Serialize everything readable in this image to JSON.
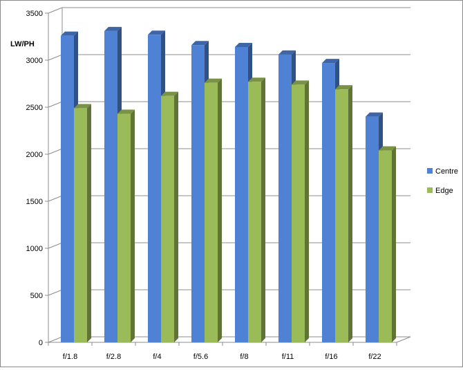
{
  "chart_data": {
    "type": "bar",
    "ylabel": "LW/PH",
    "ylim": [
      0,
      3500
    ],
    "yticks": [
      0,
      500,
      1000,
      1500,
      2000,
      2500,
      3000,
      3500
    ],
    "grid": true,
    "legend_position": "right",
    "categories": [
      "f/1.8",
      "f/2.8",
      "f/4",
      "f/5.6",
      "f/8",
      "f/11",
      "f/16",
      "f/22"
    ],
    "series": [
      {
        "name": "Centre",
        "color": "#4f81d4",
        "values": [
          3260,
          3310,
          3270,
          3160,
          3140,
          3060,
          2970,
          2400
        ]
      },
      {
        "name": "Edge",
        "color": "#9bbb59",
        "values": [
          2490,
          2430,
          2620,
          2760,
          2770,
          2740,
          2690,
          2040
        ]
      }
    ]
  }
}
